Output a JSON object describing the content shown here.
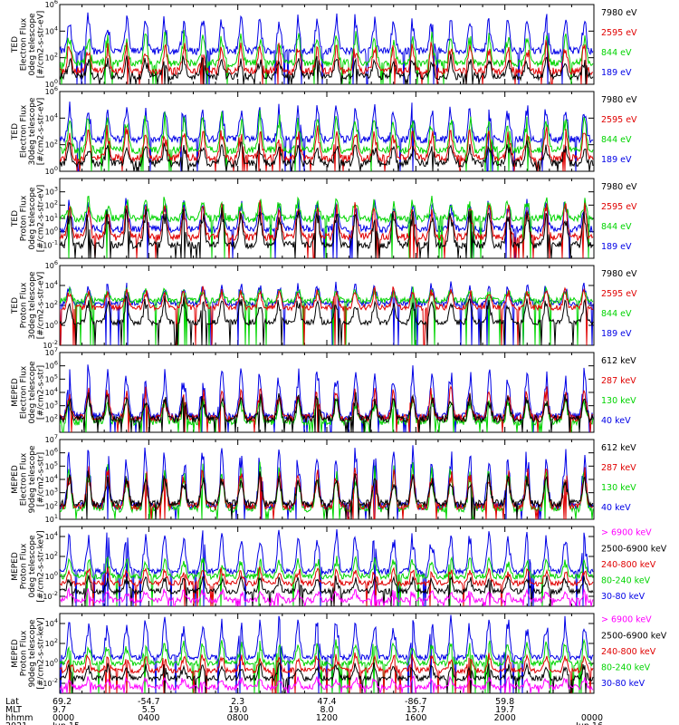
{
  "colors": {
    "black": "#000000",
    "red": "#e00000",
    "green": "#00d400",
    "blue": "#0000e6",
    "magenta": "#ff00ff"
  },
  "chart_data": [
    {
      "type": "line",
      "ylabel_lines": [
        "TED",
        "Electron Flux",
        "0deg telescope",
        "[#/cm2-s-str-eV]"
      ],
      "y_log": true,
      "ylim_exp": [
        0,
        6
      ],
      "y_tick_labels": [
        "10^0",
        "10^2",
        "10^4",
        "10^6"
      ],
      "series": [
        {
          "name": "7980 eV",
          "color": "#000000",
          "base_exp": 0.6,
          "amp": 1.2
        },
        {
          "name": "2595 eV",
          "color": "#e00000",
          "base_exp": 1.0,
          "amp": 1.7
        },
        {
          "name": "844 eV",
          "color": "#00d400",
          "base_exp": 1.6,
          "amp": 1.8
        },
        {
          "name": "189 eV",
          "color": "#0000e6",
          "base_exp": 2.5,
          "amp": 2.2
        }
      ]
    },
    {
      "type": "line",
      "ylabel_lines": [
        "TED",
        "Electron Flux",
        "30deg telescope",
        "[#/cm2-s-str-eV]"
      ],
      "y_log": true,
      "ylim_exp": [
        0,
        6
      ],
      "y_tick_labels": [
        "10^0",
        "10^2",
        "10^4",
        "10^6"
      ],
      "series": [
        {
          "name": "7980 eV",
          "color": "#000000",
          "base_exp": 0.6,
          "amp": 1.2
        },
        {
          "name": "2595 eV",
          "color": "#e00000",
          "base_exp": 1.0,
          "amp": 1.8
        },
        {
          "name": "844 eV",
          "color": "#00d400",
          "base_exp": 1.6,
          "amp": 2.2
        },
        {
          "name": "189 eV",
          "color": "#0000e6",
          "base_exp": 2.4,
          "amp": 2.1
        }
      ]
    },
    {
      "type": "line",
      "ylabel_lines": [
        "TED",
        "Proton Flux",
        "0deg telescope",
        "[#/cm2-s-str-eV]"
      ],
      "y_log": true,
      "ylim_exp": [
        -2,
        4
      ],
      "y_tick_labels": [
        "10^-1",
        "10^0",
        "10^1",
        "10^2",
        "10^3"
      ],
      "series": [
        {
          "name": "7980 eV",
          "color": "#000000",
          "base_exp": -1.0,
          "amp": 2.2
        },
        {
          "name": "2595 eV",
          "color": "#e00000",
          "base_exp": -0.4,
          "amp": 2.0
        },
        {
          "name": "844 eV",
          "color": "#00d400",
          "base_exp": 1.0,
          "amp": 1.2
        },
        {
          "name": "189 eV",
          "color": "#0000e6",
          "base_exp": 0.2,
          "amp": 1.8
        }
      ]
    },
    {
      "type": "line",
      "ylabel_lines": [
        "TED",
        "Proton Flux",
        "30deg telescope",
        "[#/cm2-s-str-eV]"
      ],
      "y_log": true,
      "ylim_exp": [
        -2,
        6
      ],
      "y_tick_labels": [
        "10^-2",
        "10^0",
        "10^2",
        "10^4",
        "10^6"
      ],
      "series": [
        {
          "name": "7980 eV",
          "color": "#000000",
          "base_exp": 0.3,
          "amp": 2.0
        },
        {
          "name": "2595 eV",
          "color": "#e00000",
          "base_exp": 1.8,
          "amp": 1.5
        },
        {
          "name": "844 eV",
          "color": "#00d400",
          "base_exp": 2.5,
          "amp": 0.9
        },
        {
          "name": "189 eV",
          "color": "#0000e6",
          "base_exp": 2.2,
          "amp": 1.6
        }
      ]
    },
    {
      "type": "line",
      "ylabel_lines": [
        "MEPED",
        "Electron Flux",
        "0deg telescope",
        "[#/cm2-s-str]"
      ],
      "y_log": true,
      "ylim_exp": [
        1,
        7
      ],
      "y_tick_labels": [
        "10^2",
        "10^3",
        "10^4",
        "10^5",
        "10^6",
        "10^7"
      ],
      "series": [
        {
          "name": "612 keV",
          "color": "#000000",
          "base_exp": 2.0,
          "amp": 1.5
        },
        {
          "name": "287 keV",
          "color": "#e00000",
          "base_exp": 2.1,
          "amp": 1.8
        },
        {
          "name": "130 keV",
          "color": "#00d400",
          "base_exp": 1.8,
          "amp": 1.5
        },
        {
          "name": "40 keV",
          "color": "#0000e6",
          "base_exp": 2.2,
          "amp": 3.0
        }
      ]
    },
    {
      "type": "line",
      "ylabel_lines": [
        "MEPED",
        "Electron Flux",
        "90deg telescope",
        "[#/cm2-s-str]"
      ],
      "y_log": true,
      "ylim_exp": [
        1,
        7
      ],
      "y_tick_labels": [
        "10^1",
        "10^2",
        "10^3",
        "10^4",
        "10^5",
        "10^6",
        "10^7"
      ],
      "series": [
        {
          "name": "612 keV",
          "color": "#000000",
          "base_exp": 2.2,
          "amp": 1.8
        },
        {
          "name": "287 keV",
          "color": "#e00000",
          "base_exp": 2.0,
          "amp": 2.4
        },
        {
          "name": "130 keV",
          "color": "#00d400",
          "base_exp": 1.8,
          "amp": 2.6
        },
        {
          "name": "40 keV",
          "color": "#0000e6",
          "base_exp": 2.0,
          "amp": 3.6
        }
      ]
    },
    {
      "type": "line",
      "ylabel_lines": [
        "MEPED",
        "Proton Flux",
        "0deg telescope",
        "[#/cm2-s-str-keV]"
      ],
      "y_log": true,
      "ylim_exp": [
        -3,
        5
      ],
      "y_tick_labels": [
        "10^-2",
        "10^0",
        "10^2",
        "10^4"
      ],
      "series": [
        {
          "name": "> 6900 keV",
          "color": "#ff00ff",
          "base_exp": -2.4,
          "amp": 0.8
        },
        {
          "name": "2500-6900 keV",
          "color": "#000000",
          "base_exp": -1.5,
          "amp": 1.2
        },
        {
          "name": "240-800 keV",
          "color": "#e00000",
          "base_exp": -0.7,
          "amp": 1.2
        },
        {
          "name": "80-240 keV",
          "color": "#00d400",
          "base_exp": 0.0,
          "amp": 1.5
        },
        {
          "name": "30-80 keV",
          "color": "#0000e6",
          "base_exp": 0.5,
          "amp": 3.2
        }
      ]
    },
    {
      "type": "line",
      "ylabel_lines": [
        "MEPED",
        "Proton Flux",
        "90deg telescope",
        "[#/cm2-s-str-keV]"
      ],
      "y_log": true,
      "ylim_exp": [
        -3,
        5
      ],
      "y_tick_labels": [
        "10^-2",
        "10^0",
        "10^2",
        "10^4"
      ],
      "series": [
        {
          "name": "> 6900 keV",
          "color": "#ff00ff",
          "base_exp": -2.4,
          "amp": 0.8
        },
        {
          "name": "2500-6900 keV",
          "color": "#000000",
          "base_exp": -1.5,
          "amp": 1.2
        },
        {
          "name": "240-800 keV",
          "color": "#e00000",
          "base_exp": -0.7,
          "amp": 1.3
        },
        {
          "name": "80-240 keV",
          "color": "#00d400",
          "base_exp": 0.0,
          "amp": 1.8
        },
        {
          "name": "30-80 keV",
          "color": "#0000e6",
          "base_exp": 0.6,
          "amp": 3.2
        }
      ]
    }
  ],
  "x_axis": {
    "row_labels": [
      "Lat",
      "MLT",
      "hhmm",
      "2021"
    ],
    "ticks": [
      {
        "lat": "69.2",
        "mlt": "9.7",
        "hhmm": "0000",
        "date": "Jun 15"
      },
      {
        "lat": "-54.7",
        "mlt": "5.5",
        "hhmm": "0400",
        "date": ""
      },
      {
        "lat": "2.3",
        "mlt": "19.0",
        "hhmm": "0800",
        "date": ""
      },
      {
        "lat": "47.4",
        "mlt": "8.0",
        "hhmm": "1200",
        "date": ""
      },
      {
        "lat": "-86.7",
        "mlt": "15.7",
        "hhmm": "1600",
        "date": ""
      },
      {
        "lat": "59.8",
        "mlt": "19.7",
        "hhmm": "2000",
        "date": ""
      },
      {
        "lat": "",
        "mlt": "",
        "hhmm": "0000",
        "date": "Jun 16"
      }
    ]
  }
}
